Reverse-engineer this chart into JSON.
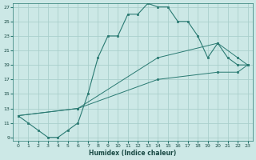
{
  "xlabel": "Humidex (Indice chaleur)",
  "bg_color": "#cce8e6",
  "grid_color": "#aacfcc",
  "line_color": "#2a7a72",
  "xlim": [
    -0.5,
    23.5
  ],
  "ylim": [
    8.5,
    27.5
  ],
  "yticks": [
    9,
    11,
    13,
    15,
    17,
    19,
    21,
    23,
    25,
    27
  ],
  "xticks": [
    0,
    1,
    2,
    3,
    4,
    5,
    6,
    7,
    8,
    9,
    10,
    11,
    12,
    13,
    14,
    15,
    16,
    17,
    18,
    19,
    20,
    21,
    22,
    23
  ],
  "line1_x": [
    0,
    1,
    2,
    3,
    4,
    5,
    6,
    7,
    8,
    9,
    10,
    11,
    12,
    13,
    14,
    15,
    16,
    17,
    18,
    19,
    20,
    21,
    22,
    23
  ],
  "line1_y": [
    12,
    11,
    10,
    9,
    9,
    10,
    11,
    15,
    20,
    23,
    23,
    26,
    26,
    27.5,
    27,
    27,
    25,
    25,
    23,
    20,
    22,
    20,
    19,
    19
  ],
  "line2_x": [
    0,
    6,
    14,
    20,
    22,
    23
  ],
  "line2_y": [
    12,
    13,
    20,
    22,
    20,
    19
  ],
  "line3_x": [
    0,
    6,
    14,
    20,
    22,
    23
  ],
  "line3_y": [
    12,
    13,
    17,
    18,
    18,
    19
  ]
}
